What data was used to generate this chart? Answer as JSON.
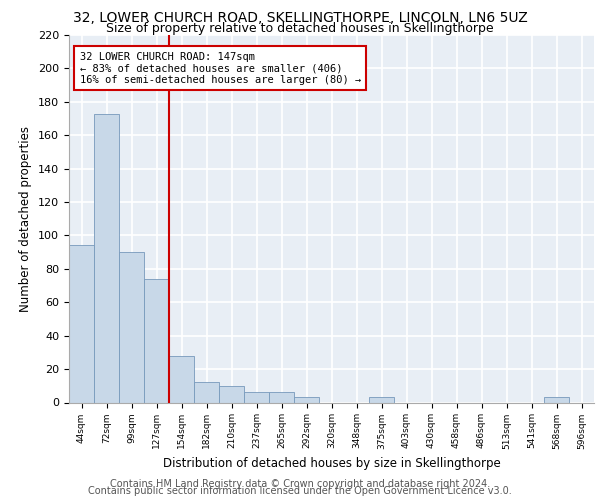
{
  "title1": "32, LOWER CHURCH ROAD, SKELLINGTHORPE, LINCOLN, LN6 5UZ",
  "title2": "Size of property relative to detached houses in Skellingthorpe",
  "xlabel": "Distribution of detached houses by size in Skellingthorpe",
  "ylabel": "Number of detached properties",
  "footer1": "Contains HM Land Registry data © Crown copyright and database right 2024.",
  "footer2": "Contains public sector information licensed under the Open Government Licence v3.0.",
  "categories": [
    "44sqm",
    "72sqm",
    "99sqm",
    "127sqm",
    "154sqm",
    "182sqm",
    "210sqm",
    "237sqm",
    "265sqm",
    "292sqm",
    "320sqm",
    "348sqm",
    "375sqm",
    "403sqm",
    "430sqm",
    "458sqm",
    "486sqm",
    "513sqm",
    "541sqm",
    "568sqm",
    "596sqm"
  ],
  "values": [
    94,
    173,
    90,
    74,
    28,
    12,
    10,
    6,
    6,
    3,
    0,
    0,
    3,
    0,
    0,
    0,
    0,
    0,
    0,
    3,
    0
  ],
  "bar_color": "#c8d8e8",
  "bar_edge_color": "#7799bb",
  "annotation_label": "32 LOWER CHURCH ROAD: 147sqm",
  "annotation_line1": "← 83% of detached houses are smaller (406)",
  "annotation_line2": "16% of semi-detached houses are larger (80) →",
  "vline_color": "#cc0000",
  "vline_x": 3.5,
  "ylim": [
    0,
    220
  ],
  "yticks": [
    0,
    20,
    40,
    60,
    80,
    100,
    120,
    140,
    160,
    180,
    200,
    220
  ],
  "bg_color": "#e8eef5",
  "grid_color": "#ffffff",
  "title1_fontsize": 10,
  "title2_fontsize": 9,
  "xlabel_fontsize": 8.5,
  "ylabel_fontsize": 8.5,
  "footer_fontsize": 7
}
